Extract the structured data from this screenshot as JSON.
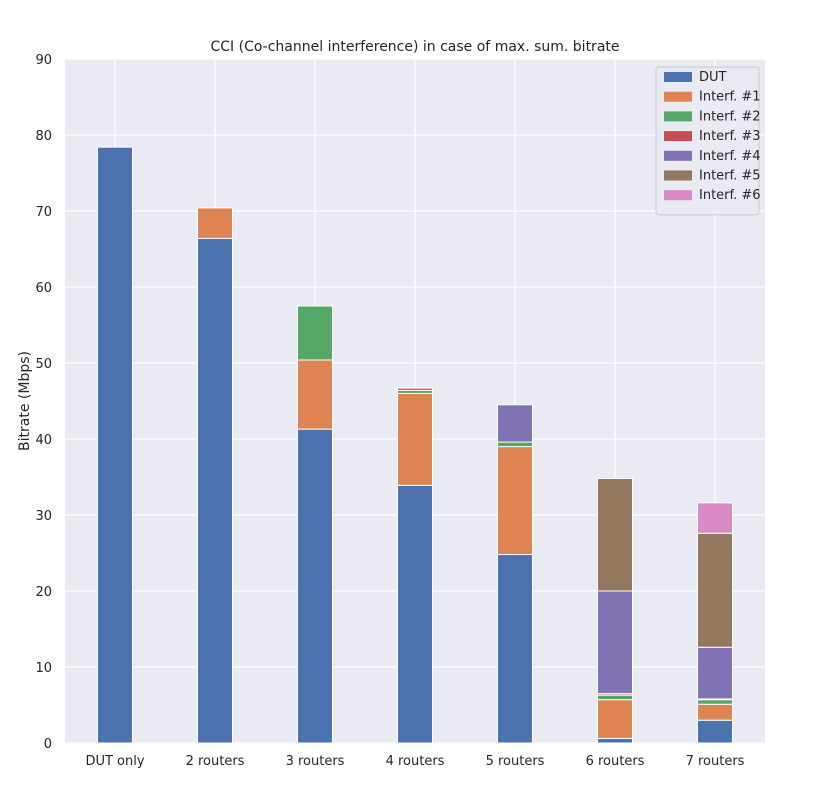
{
  "chart_data": {
    "type": "bar",
    "stacked": true,
    "title": "CCI (Co-channel interference) in case of max. sum. bitrate",
    "xlabel": "",
    "ylabel": "Bitrate (Mbps)",
    "ylim": [
      0,
      90
    ],
    "yticks": [
      0,
      10,
      20,
      30,
      40,
      50,
      60,
      70,
      80,
      90
    ],
    "grid": true,
    "legend_position": "top-right",
    "categories": [
      "DUT only",
      "2 routers",
      "3 routers",
      "4 routers",
      "5 routers",
      "6 routers",
      "7 routers"
    ],
    "series": [
      {
        "name": "DUT",
        "color": "#4c72b0",
        "values": [
          78.4,
          66.4,
          41.3,
          33.9,
          24.8,
          0.6,
          3.0
        ]
      },
      {
        "name": "Interf. #1",
        "color": "#dd8452",
        "values": [
          0,
          4.0,
          9.1,
          12.1,
          14.2,
          5.1,
          2.1
        ]
      },
      {
        "name": "Interf. #2",
        "color": "#55a868",
        "values": [
          0,
          0,
          7.1,
          0.4,
          0.6,
          0.6,
          0.6
        ]
      },
      {
        "name": "Interf. #3",
        "color": "#c44e52",
        "values": [
          0,
          0,
          0,
          0.3,
          0,
          0.2,
          0.1
        ]
      },
      {
        "name": "Interf. #4",
        "color": "#8172b3",
        "values": [
          0,
          0,
          0,
          0,
          4.9,
          13.5,
          6.8
        ]
      },
      {
        "name": "Interf. #5",
        "color": "#937860",
        "values": [
          0,
          0,
          0,
          0,
          0,
          14.8,
          15.0
        ]
      },
      {
        "name": "Interf. #6",
        "color": "#da8bc3",
        "values": [
          0,
          0,
          0,
          0,
          0,
          0,
          4.0
        ]
      }
    ]
  },
  "colors": {
    "plot_background": "#eaeaf2",
    "grid": "#ffffff"
  }
}
